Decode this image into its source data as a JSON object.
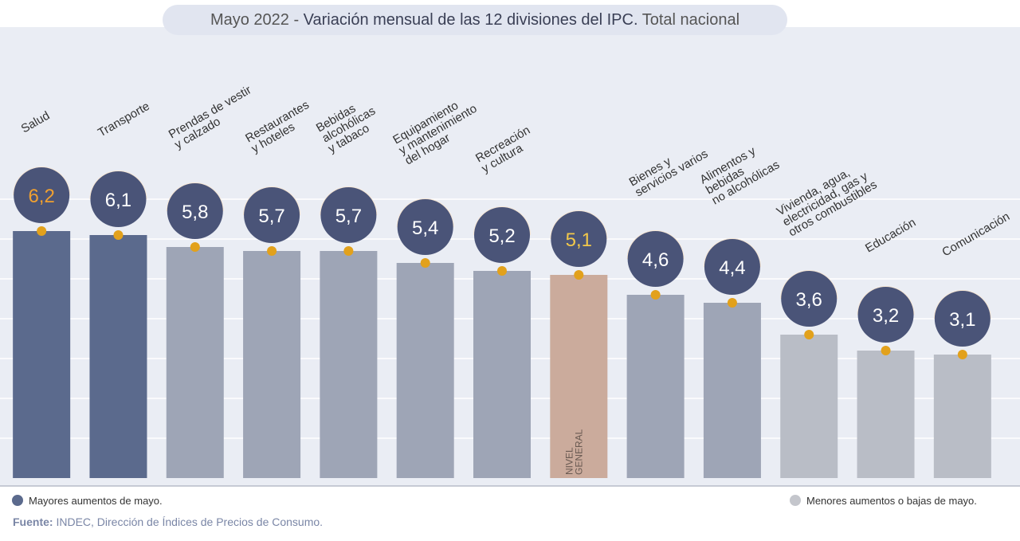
{
  "chart_data": {
    "type": "bar",
    "title_prefix": "Mayo 2022 -",
    "title": "Variación mensual de las 12 divisiones del IPC.",
    "title_suffix": "Total nacional",
    "categories": [
      "Salud",
      "Transporte",
      "Prendas de vestir\ny calzado",
      "Restaurantes\ny hoteles",
      "Bebidas\nalcohólicas\ny tabaco",
      "Equipamiento\ny mantenimiento\ndel hogar",
      "Recreación\ny cultura",
      null,
      "Bienes y\nservicios varios",
      "Alimentos y\nbebidas\nno alcohólicas",
      "Vivienda, agua,\nelectricidad, gas y\notros combustibles",
      "Educación",
      "Comunicación"
    ],
    "bar_text": {
      "index": 7,
      "label": "NIVEL\nGENERAL"
    },
    "values": [
      6.2,
      6.1,
      5.8,
      5.7,
      5.7,
      5.4,
      5.2,
      5.1,
      4.6,
      4.4,
      3.6,
      3.2,
      3.1
    ],
    "value_labels": [
      "6,2",
      "6,1",
      "5,8",
      "5,7",
      "5,7",
      "5,4",
      "5,2",
      "5,1",
      "4,6",
      "4,4",
      "3,6",
      "3,2",
      "3,1"
    ],
    "colors": [
      "#5b6a8d",
      "#5b6a8d",
      "#9ea5b6",
      "#9ea5b6",
      "#9ea5b6",
      "#9ea5b6",
      "#9ea5b6",
      "#cbab9c",
      "#9ea5b6",
      "#9ea5b6",
      "#b9bdc6",
      "#b9bdc6",
      "#b9bdc6"
    ],
    "ylim": [
      0,
      7
    ],
    "legend": [
      {
        "label": "Mayores aumentos de mayo.",
        "color": "#5b6a8d"
      },
      {
        "label": "Menores aumentos o bajas de mayo.",
        "color": "#c4c6cc"
      }
    ],
    "source_label": "Fuente:",
    "source": "INDEC, Dirección de Índices de Precios de Consumo."
  }
}
